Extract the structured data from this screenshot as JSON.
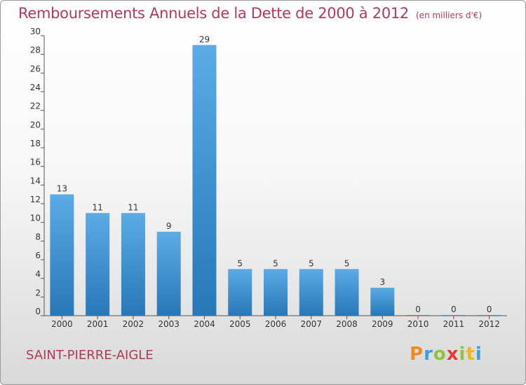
{
  "chart_data": {
    "type": "bar",
    "title": "Remboursements Annuels de la Dette de 2000 à 2012",
    "subtitle": "(en milliers d'€)",
    "categories": [
      "2000",
      "2001",
      "2002",
      "2003",
      "2004",
      "2005",
      "2006",
      "2007",
      "2008",
      "2009",
      "2010",
      "2011",
      "2012"
    ],
    "values": [
      13,
      11,
      11,
      9,
      29,
      5,
      5,
      5,
      5,
      3,
      0,
      0,
      0
    ],
    "ylim": [
      0,
      30
    ],
    "yticks": [
      0,
      2,
      4,
      6,
      8,
      10,
      12,
      14,
      16,
      18,
      20,
      22,
      24,
      26,
      28,
      30
    ],
    "grid": false,
    "bar_color": "#3a8fd3"
  },
  "commune": "SAINT-PIERRE-AIGLE",
  "logo": {
    "letters": [
      "P",
      "r",
      "o",
      "x",
      "i",
      "t",
      "i"
    ],
    "colors": [
      "#f28a1c",
      "#3aa0dd",
      "#8cc63f",
      "#e63b2e",
      "#8cc63f",
      "#f2b51c",
      "#3aa0dd"
    ]
  }
}
